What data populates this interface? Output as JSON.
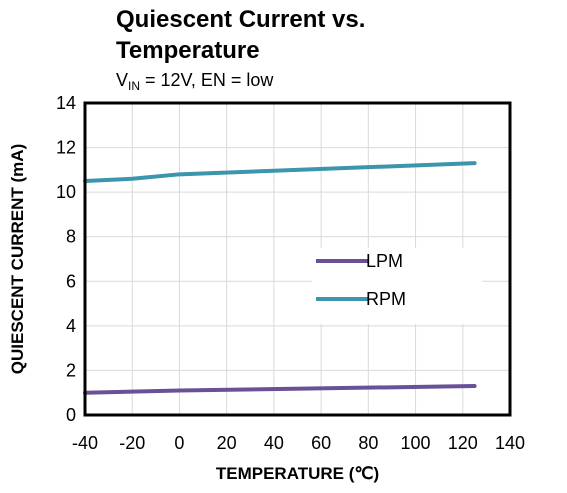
{
  "chart_data": {
    "type": "line",
    "title": "Quiescent Current vs. Temperature",
    "subtitle": {
      "v": "V",
      "sub": "IN",
      "rest": " = 12V, EN = low"
    },
    "xlabel": "TEMPERATURE (℃)",
    "ylabel": "QUIESCENT CURRENT (mA)",
    "xlim": [
      -40,
      140
    ],
    "ylim": [
      0,
      14
    ],
    "xticks": [
      -40,
      -20,
      0,
      20,
      40,
      60,
      80,
      100,
      120,
      140
    ],
    "yticks": [
      0,
      2,
      4,
      6,
      8,
      10,
      12,
      14
    ],
    "grid": true,
    "legend_position": "center-right",
    "series": [
      {
        "name": "LPM",
        "color": "#6a5096",
        "x": [
          -40,
          0,
          125
        ],
        "y": [
          1.0,
          1.1,
          1.3
        ]
      },
      {
        "name": "RPM",
        "color": "#3a95ad",
        "x": [
          -40,
          -20,
          0,
          125
        ],
        "y": [
          10.5,
          10.6,
          10.8,
          11.3
        ]
      }
    ]
  }
}
